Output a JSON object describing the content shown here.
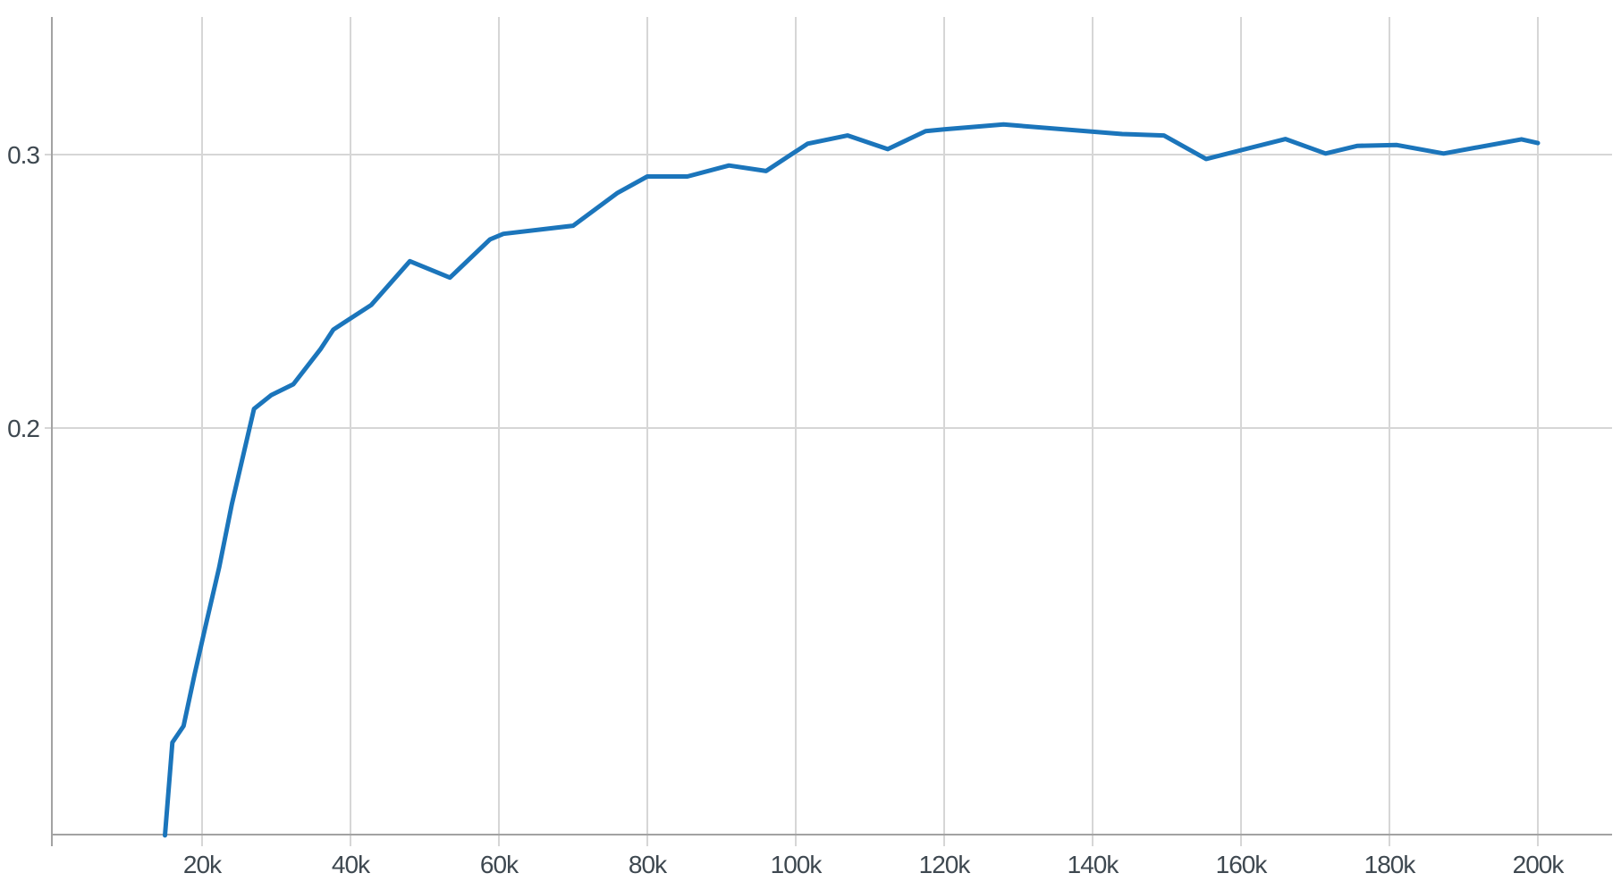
{
  "page": {
    "background": "#ffffff"
  },
  "chart": {
    "line_color": "#1b75bb",
    "grid_color": "#d6d6d6",
    "axis_color": "#a2a2a2",
    "tick_label_color": "#3e4850",
    "line_width": 5
  },
  "chart_data": {
    "type": "line",
    "title": "",
    "xlabel": "",
    "ylabel": "",
    "x_unit": "steps (thousands; axis labels use k suffix)",
    "grid": true,
    "legend_position": "none",
    "xlim_k": [
      0,
      210
    ],
    "ylim": [
      0.051,
      0.351
    ],
    "x_ticks": [
      {
        "value": 20,
        "label": "20k"
      },
      {
        "value": 40,
        "label": "40k"
      },
      {
        "value": 60,
        "label": "60k"
      },
      {
        "value": 80,
        "label": "80k"
      },
      {
        "value": 100,
        "label": "100k"
      },
      {
        "value": 120,
        "label": "120k"
      },
      {
        "value": 140,
        "label": "140k"
      },
      {
        "value": 160,
        "label": "160k"
      },
      {
        "value": 180,
        "label": "180k"
      },
      {
        "value": 200,
        "label": "200k"
      }
    ],
    "y_ticks": [
      {
        "value": 0.2,
        "label": "0.2"
      },
      {
        "value": 0.3,
        "label": "0.3"
      }
    ],
    "series": [
      {
        "x_k": [
          15,
          16,
          17.5,
          19,
          20.5,
          22.3,
          24,
          27,
          29.3,
          32.3,
          36,
          37.7,
          42.8,
          48,
          53.4,
          58.8,
          60.6,
          70,
          76,
          80,
          85.4,
          91,
          96,
          101.6,
          107,
          112.4,
          117.5,
          120,
          128,
          144,
          149.6,
          155.3,
          166,
          171.4,
          175.7,
          181,
          187.3,
          197.8,
          200
        ],
        "y": [
          0.051,
          0.085,
          0.091,
          0.11,
          0.128,
          0.149,
          0.172,
          0.207,
          0.212,
          0.216,
          0.229,
          0.236,
          0.245,
          0.261,
          0.255,
          0.269,
          0.271,
          0.274,
          0.286,
          0.292,
          0.292,
          0.296,
          0.294,
          0.304,
          0.307,
          0.302,
          0.3086,
          0.3092,
          0.311,
          0.3075,
          0.307,
          0.2984,
          0.3057,
          0.3004,
          0.3032,
          0.3035,
          0.3004,
          0.3056,
          0.3042
        ]
      }
    ]
  }
}
